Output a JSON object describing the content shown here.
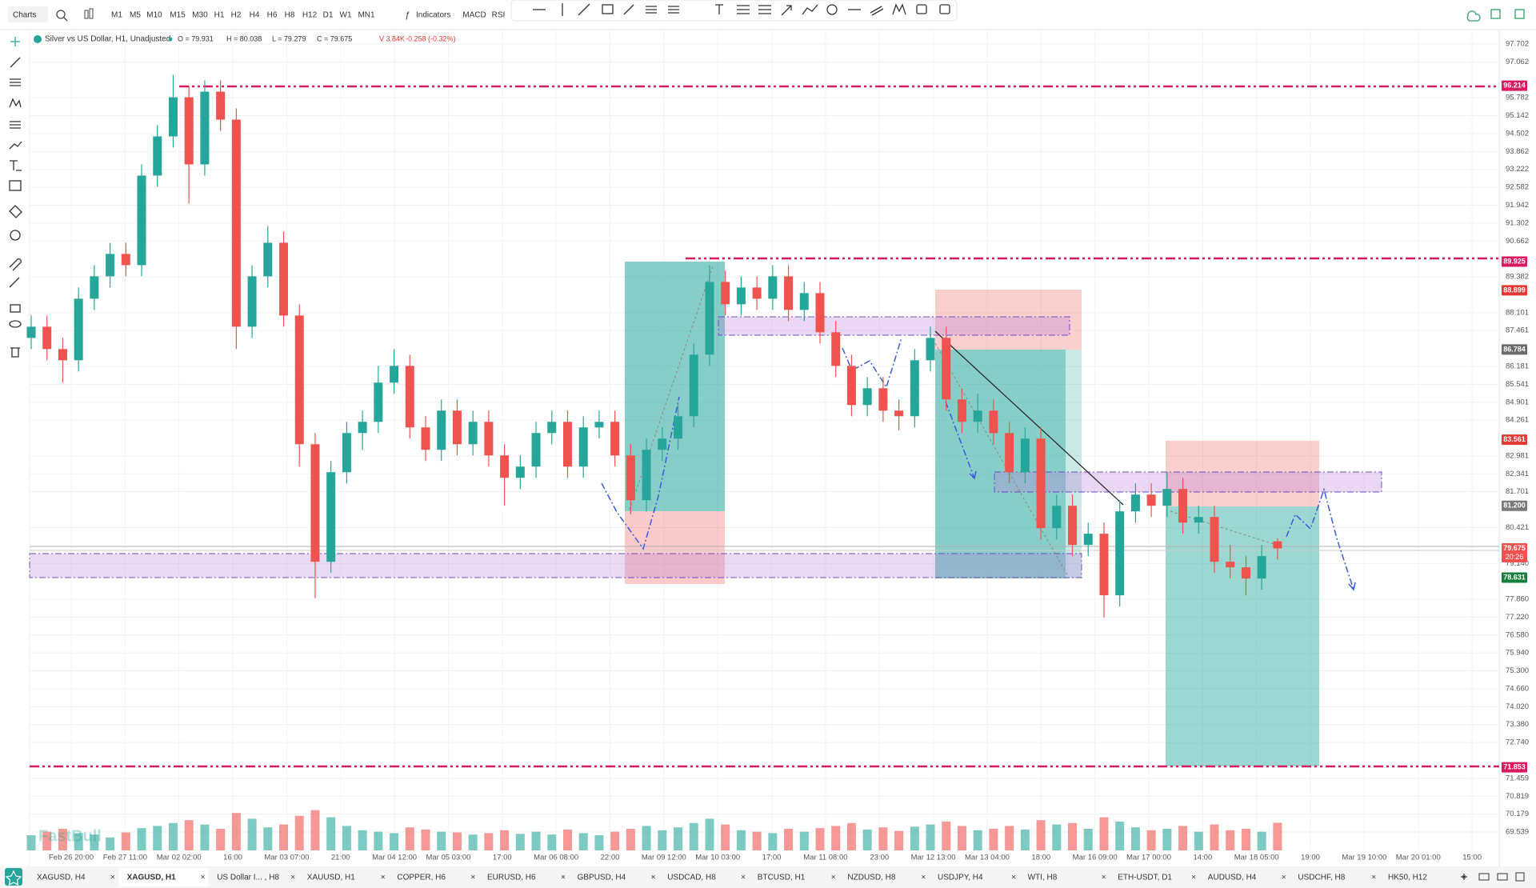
{
  "toolbar": {
    "menu": "Charts",
    "timeframes": [
      "M1",
      "M5",
      "M10",
      "M15",
      "M30",
      "H1",
      "H2",
      "H4",
      "H6",
      "H8",
      "H12",
      "D1",
      "W1",
      "MN1"
    ],
    "active_timeframe": 5,
    "indicators": "Indicators",
    "studies": [
      "MACD",
      "RSI"
    ]
  },
  "legend": {
    "symbol": "Silver vs US Dollar, H1, Unadjusted",
    "items": [
      "O = 79.931",
      "H = 80.038",
      "L = 79.279",
      "C = 79.675",
      "V 3.84K",
      "-0.258 (-0.32%)"
    ]
  },
  "watermark": "FastBull",
  "tabs": {
    "items": [
      "XAGUSD, H4",
      "XAGUSD, H1",
      "US Dollar I... , H8",
      "XAUUSD, H1",
      "COPPER, H6",
      "EURUSD, H6",
      "GBPUSD, H4",
      "USDCAD, H8",
      "BTCUSD, H1",
      "NZDUSD, H8",
      "USDJPY, H4",
      "WTI, H8",
      "ETH-USDT, D1",
      "AUDUSD, H4",
      "USDCHF, H8",
      "HK50, H12"
    ],
    "active": 1
  },
  "chart_data": {
    "type": "candlestick",
    "up_color": "#26a69a",
    "down_color": "#ef5350",
    "x_tick_labels": [
      "Feb 26 20:00",
      "Feb 27 11:00",
      "Mar 02 02:00",
      "16:00",
      "Mar 03 07:00",
      "21:00",
      "Mar 04 12:00",
      "Mar 05 03:00",
      "17:00",
      "Mar 06 08:00",
      "22:00",
      "Mar 09 12:00",
      "Mar 10 03:00",
      "17:00",
      "Mar 11 08:00",
      "23:00",
      "Mar 12 13:00",
      "Mar 13 04:00",
      "18:00",
      "Mar 16 09:00",
      "Mar 17 00:00",
      "14:00",
      "Mar 18 05:00",
      "19:00",
      "Mar 19 10:00",
      "Mar 20 01:00",
      "15:00"
    ],
    "open": [
      87.2,
      87.6,
      86.8,
      86.4,
      88.6,
      89.4,
      90.2,
      89.8,
      93.0,
      94.4,
      95.8,
      93.4,
      96.0,
      95.0,
      87.6,
      89.4,
      90.6,
      88.0,
      83.4,
      79.2,
      82.4,
      83.8,
      84.2,
      85.6,
      86.2,
      84.0,
      83.2,
      84.6,
      83.4,
      84.2,
      83.0,
      82.2,
      82.6,
      83.8,
      84.2,
      82.6,
      84.0,
      84.2,
      83.0,
      81.4,
      83.2,
      83.6,
      84.4,
      86.6,
      89.2,
      88.4,
      89.0,
      88.6,
      89.4,
      88.2,
      88.8,
      87.4,
      86.2,
      84.8,
      85.4,
      84.6,
      84.4,
      86.4,
      87.2,
      85.0,
      84.2,
      84.6,
      83.8,
      82.4,
      83.6,
      80.4,
      81.2,
      79.8,
      80.2,
      78.0,
      81.0,
      81.6,
      81.2,
      81.8,
      80.6,
      80.8,
      79.2,
      79.0,
      78.6,
      79.931
    ],
    "high": [
      88.0,
      88.0,
      87.2,
      89.0,
      89.8,
      90.6,
      90.6,
      93.4,
      94.8,
      96.6,
      96.2,
      96.4,
      96.4,
      95.4,
      89.8,
      91.2,
      91.0,
      88.4,
      83.8,
      82.8,
      84.2,
      84.6,
      86.2,
      86.8,
      86.6,
      84.4,
      85.0,
      85.0,
      84.6,
      84.6,
      83.4,
      83.0,
      84.2,
      84.6,
      84.6,
      84.4,
      84.6,
      84.6,
      83.4,
      83.6,
      84.0,
      84.8,
      87.0,
      89.8,
      89.6,
      89.4,
      89.4,
      89.8,
      89.8,
      89.2,
      89.2,
      87.8,
      86.6,
      85.8,
      85.8,
      85.0,
      86.8,
      87.6,
      87.6,
      85.4,
      85.2,
      85.0,
      84.2,
      84.0,
      84.0,
      81.6,
      81.6,
      80.6,
      80.6,
      81.4,
      82.0,
      82.0,
      82.4,
      82.2,
      81.2,
      81.2,
      79.8,
      79.4,
      79.8,
      80.038
    ],
    "low": [
      86.8,
      86.4,
      85.6,
      86.0,
      88.2,
      89.0,
      89.4,
      89.4,
      92.6,
      94.0,
      92.0,
      93.0,
      94.6,
      86.8,
      87.2,
      89.0,
      87.6,
      82.6,
      77.9,
      78.8,
      82.0,
      83.2,
      83.8,
      85.2,
      83.6,
      82.8,
      82.8,
      83.0,
      83.0,
      82.6,
      81.2,
      81.8,
      82.2,
      83.4,
      82.2,
      82.2,
      83.6,
      82.6,
      80.9,
      81.0,
      82.8,
      83.2,
      84.0,
      86.2,
      88.0,
      88.0,
      88.2,
      88.2,
      87.8,
      87.8,
      87.0,
      85.8,
      84.4,
      84.4,
      84.2,
      83.9,
      84.0,
      86.0,
      84.6,
      83.8,
      83.8,
      83.4,
      82.0,
      82.0,
      80.0,
      80.0,
      79.4,
      79.4,
      77.2,
      77.6,
      80.6,
      80.8,
      80.8,
      80.2,
      80.2,
      78.8,
      78.6,
      78.0,
      78.2,
      79.279
    ],
    "close": [
      87.6,
      86.8,
      86.4,
      88.6,
      89.4,
      90.2,
      89.8,
      93.0,
      94.4,
      95.8,
      93.4,
      96.0,
      95.0,
      87.6,
      89.4,
      90.6,
      88.0,
      83.4,
      79.2,
      82.4,
      83.8,
      84.2,
      85.6,
      86.2,
      84.0,
      83.2,
      84.6,
      83.4,
      84.2,
      83.0,
      82.2,
      82.6,
      83.8,
      84.2,
      82.6,
      84.0,
      84.2,
      83.0,
      81.4,
      83.2,
      83.6,
      84.4,
      86.6,
      89.2,
      88.4,
      89.0,
      88.6,
      89.4,
      88.2,
      88.8,
      87.4,
      86.2,
      84.8,
      85.4,
      84.6,
      84.4,
      86.4,
      87.2,
      85.0,
      84.2,
      84.6,
      83.8,
      82.4,
      83.6,
      80.4,
      81.2,
      79.8,
      80.2,
      78.0,
      81.0,
      81.6,
      81.2,
      81.8,
      80.6,
      80.8,
      79.2,
      79.0,
      78.6,
      79.4,
      79.675
    ],
    "volume": [
      2.1,
      2.6,
      3.0,
      2.4,
      2.2,
      1.8,
      2.5,
      3.1,
      3.4,
      3.8,
      4.2,
      3.6,
      3.0,
      5.2,
      4.4,
      3.2,
      3.6,
      4.8,
      5.6,
      4.6,
      3.4,
      2.8,
      2.6,
      2.4,
      3.2,
      2.9,
      2.6,
      2.5,
      2.2,
      2.4,
      2.8,
      2.3,
      2.6,
      2.2,
      2.9,
      2.4,
      2.1,
      2.6,
      3.0,
      3.4,
      2.8,
      3.2,
      3.8,
      4.4,
      3.6,
      2.8,
      2.6,
      2.4,
      3.0,
      2.6,
      3.1,
      3.4,
      3.8,
      2.9,
      3.2,
      2.7,
      3.3,
      3.6,
      4.0,
      3.4,
      2.8,
      3.0,
      3.4,
      2.9,
      4.2,
      3.6,
      3.8,
      3.0,
      4.6,
      4.0,
      3.2,
      2.8,
      3.0,
      3.4,
      2.6,
      3.6,
      2.8,
      3.0,
      2.6,
      3.84
    ],
    "ylim": [
      68.74,
      97.96
    ],
    "yticks": [
      97.702,
      97.062,
      95.782,
      95.142,
      94.502,
      93.862,
      93.222,
      92.582,
      91.942,
      91.302,
      90.662,
      89.382,
      88.101,
      87.461,
      86.181,
      85.541,
      84.901,
      84.261,
      82.981,
      82.341,
      81.701,
      80.421,
      {
        "value": 79.14,
        "label": "79.140"
      },
      {
        "value": 77.86,
        "label": "77.860"
      },
      {
        "value": 77.22,
        "label": "77.220"
      },
      {
        "value": 76.58,
        "label": "76.580"
      },
      {
        "value": 75.94,
        "label": "75.940"
      },
      {
        "value": 75.3,
        "label": "75.300"
      },
      {
        "value": 74.66,
        "label": "74.660"
      },
      {
        "value": 74.02,
        "label": "74.020"
      },
      {
        "value": 73.38,
        "label": "73.380"
      },
      {
        "value": 72.74,
        "label": "72.740"
      },
      71.459,
      70.819,
      70.179,
      69.539
    ],
    "grid": true,
    "price_markers": [
      {
        "value": 96.214,
        "color": "#d81b60"
      },
      {
        "value": 89.925,
        "color": "#d81b60"
      },
      {
        "value": 88.899,
        "color": "#e53935"
      },
      {
        "value": 86.784,
        "color": "#6b6b6b"
      },
      {
        "value": 83.561,
        "color": "#e53935"
      },
      {
        "value": 81.2,
        "label": "81.200",
        "color": "#7a7a7a"
      },
      {
        "value": 79.675,
        "sub": "20:26",
        "color": "#ef5350"
      },
      {
        "value": 78.631,
        "color": "#15803d"
      },
      {
        "value": 71.853,
        "color": "#d81b60"
      }
    ]
  }
}
